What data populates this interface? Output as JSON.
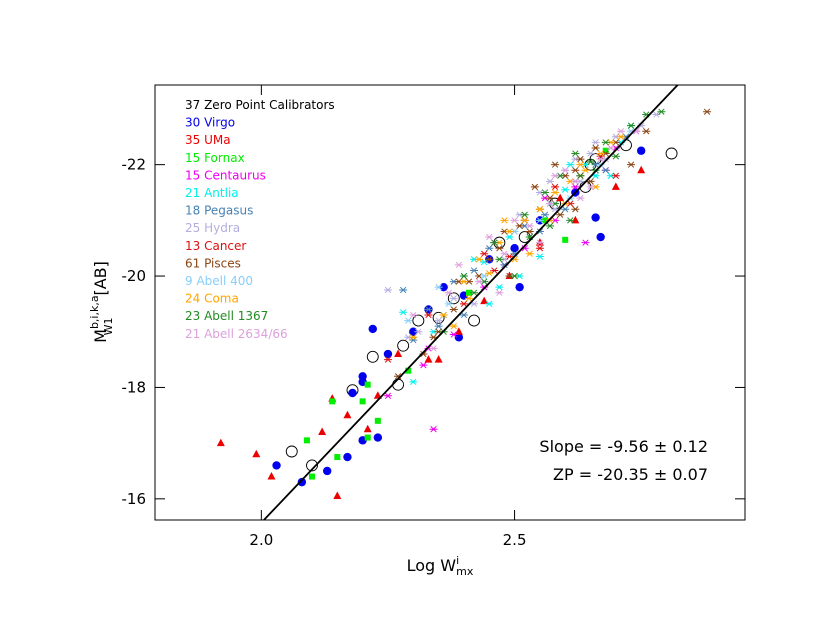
{
  "chart_data": {
    "type": "scatter",
    "x_label": {
      "main": "Log W",
      "sup": "i",
      "sub": "mx"
    },
    "y_label": {
      "main": "M",
      "sup": "b,i,k,a",
      "sub": "W1",
      "unit": "[AB]"
    },
    "xlim": [
      1.79,
      2.955
    ],
    "ylim": [
      -15.62,
      -23.43
    ],
    "xticks": [
      {
        "value": 2,
        "label": "2.0"
      },
      2.5
    ],
    "yticks": [
      -16,
      -18,
      -20,
      -22
    ],
    "annotations": [
      "Slope = -9.56 ± 0.12",
      "ZP = -20.35 ± 0.07"
    ],
    "fit_line": {
      "color": "#000000",
      "x": [
        2.005,
        2.822
      ],
      "values": [
        -15.62,
        -23.43
      ]
    },
    "series": [
      {
        "name": "37 Zero Point Calibrators",
        "color": "#000000",
        "marker": "open-circle",
        "x": [
          2.06,
          2.1,
          2.18,
          2.22,
          2.27,
          2.28,
          2.31,
          2.38,
          2.42,
          2.47,
          2.52,
          2.58,
          2.64,
          2.66,
          2.72,
          2.81,
          2.65,
          2.35
        ],
        "values": [
          -16.85,
          -16.6,
          -17.95,
          -18.55,
          -18.05,
          -18.75,
          -19.2,
          -19.6,
          -19.2,
          -20.6,
          -20.7,
          -21.3,
          -21.6,
          -22.1,
          -22.35,
          -22.2,
          -22.0,
          -19.25
        ]
      },
      {
        "name": "30 Virgo",
        "color": "#0000ee",
        "marker": "circle",
        "x": [
          2.03,
          2.08,
          2.13,
          2.17,
          2.2,
          2.23,
          2.18,
          2.2,
          2.22,
          2.25,
          2.3,
          2.33,
          2.36,
          2.4,
          2.45,
          2.5,
          2.51,
          2.55,
          2.62,
          2.67,
          2.66,
          2.75,
          2.2,
          2.39
        ],
        "values": [
          -16.6,
          -16.3,
          -16.5,
          -16.75,
          -17.05,
          -17.1,
          -17.9,
          -18.2,
          -19.05,
          -18.6,
          -19.0,
          -19.4,
          -19.8,
          -19.65,
          -20.3,
          -20.5,
          -19.8,
          -21.0,
          -21.5,
          -20.7,
          -21.05,
          -22.25,
          -18.1,
          -18.9
        ]
      },
      {
        "name": "35 UMa",
        "color": "#ee0000",
        "marker": "triangle",
        "x": [
          1.92,
          1.99,
          2.02,
          2.15,
          2.12,
          2.14,
          2.17,
          2.21,
          2.23,
          2.27,
          2.33,
          2.39,
          2.44,
          2.49,
          2.55,
          2.62,
          2.7,
          2.75,
          2.35,
          2.59
        ],
        "values": [
          -17.0,
          -16.8,
          -16.4,
          -16.05,
          -17.2,
          -17.8,
          -17.5,
          -17.25,
          -17.85,
          -18.6,
          -18.5,
          -19.0,
          -19.55,
          -20.0,
          -20.6,
          -21.0,
          -21.6,
          -21.9,
          -18.5,
          -21.4
        ]
      },
      {
        "name": "15 Fornax",
        "color": "#00ee00",
        "marker": "square",
        "x": [
          2.09,
          2.1,
          2.14,
          2.15,
          2.2,
          2.21,
          2.23,
          2.29,
          2.41,
          2.56,
          2.6,
          2.68,
          2.21
        ],
        "values": [
          -17.05,
          -16.4,
          -17.75,
          -16.75,
          -17.75,
          -17.1,
          -17.4,
          -18.3,
          -19.7,
          -21.0,
          -20.65,
          -22.25,
          -18.05
        ]
      },
      {
        "name": "15 Centaurus",
        "color": "#ee00ee",
        "marker": "asterisk",
        "x": [
          2.25,
          2.32,
          2.34,
          2.38,
          2.44,
          2.52,
          2.58,
          2.62,
          2.68,
          2.74,
          2.64,
          2.33,
          2.48,
          2.56,
          2.7
        ],
        "values": [
          -17.85,
          -18.4,
          -17.25,
          -18.95,
          -19.8,
          -20.5,
          -21.0,
          -21.6,
          -21.9,
          -22.6,
          -20.6,
          -18.7,
          -20.2,
          -21.4,
          -22.3
        ]
      },
      {
        "name": "21 Antlia",
        "color": "#00eeee",
        "marker": "asterisk",
        "x": [
          2.28,
          2.34,
          2.4,
          2.45,
          2.52,
          2.57,
          2.64,
          2.73,
          2.3,
          2.49,
          2.55,
          2.6,
          2.36,
          2.66,
          2.42,
          2.61,
          2.51,
          2.44,
          2.69,
          2.47,
          2.71
        ],
        "values": [
          -19.35,
          -19.0,
          -20.0,
          -19.5,
          -21.0,
          -21.3,
          -22.0,
          -22.7,
          -18.1,
          -20.7,
          -20.35,
          -21.55,
          -19.3,
          -21.8,
          -20.3,
          -22.0,
          -20.0,
          -20.25,
          -21.8,
          -19.8,
          -22.4
        ]
      },
      {
        "name": "18 Pegasus",
        "color": "#4682b4",
        "marker": "asterisk",
        "x": [
          2.28,
          2.33,
          2.38,
          2.45,
          2.52,
          2.6,
          2.66,
          2.72,
          2.42,
          2.56,
          2.3,
          2.48,
          2.62,
          2.35,
          2.5,
          2.68,
          2.55,
          2.4
        ],
        "values": [
          -19.75,
          -19.4,
          -19.9,
          -20.5,
          -20.9,
          -21.2,
          -22.0,
          -22.5,
          -20.1,
          -21.1,
          -18.85,
          -20.2,
          -21.7,
          -19.1,
          -20.4,
          -21.9,
          -20.8,
          -19.3
        ]
      },
      {
        "name": "25 Hydra",
        "color": "#b4aee0",
        "marker": "asterisk",
        "x": [
          2.25,
          2.29,
          2.35,
          2.4,
          2.46,
          2.51,
          2.55,
          2.6,
          2.65,
          2.7,
          2.78,
          2.44,
          2.53,
          2.58,
          2.63,
          2.38,
          2.48,
          2.57,
          2.68,
          2.75,
          2.42,
          2.5,
          2.62,
          2.31,
          2.66
        ],
        "values": [
          -19.75,
          -18.9,
          -19.2,
          -20.0,
          -20.6,
          -21.1,
          -21.5,
          -21.9,
          -22.2,
          -22.5,
          -22.9,
          -19.9,
          -20.7,
          -21.2,
          -21.7,
          -19.6,
          -20.3,
          -21.7,
          -22.1,
          -22.7,
          -19.5,
          -20.8,
          -22.1,
          -19.0,
          -22.4
        ]
      },
      {
        "name": "13 Cancer",
        "color": "#dd1111",
        "marker": "asterisk",
        "x": [
          2.25,
          2.33,
          2.4,
          2.46,
          2.52,
          2.55,
          2.58,
          2.63,
          2.67,
          2.44,
          2.49,
          2.61,
          2.7
        ],
        "values": [
          -18.5,
          -19.3,
          -19.5,
          -20.1,
          -21.0,
          -20.5,
          -21.6,
          -21.8,
          -22.15,
          -20.4,
          -20.35,
          -21.3,
          -21.8
        ]
      },
      {
        "name": "61 Pisces",
        "color": "#8b4513",
        "marker": "asterisk",
        "x": [
          2.27,
          2.32,
          2.35,
          2.38,
          2.41,
          2.43,
          2.45,
          2.47,
          2.49,
          2.51,
          2.53,
          2.55,
          2.57,
          2.59,
          2.6,
          2.62,
          2.63,
          2.65,
          2.66,
          2.68,
          2.7,
          2.73,
          2.76,
          2.88,
          2.54,
          2.58,
          2.48,
          2.62,
          2.34,
          2.39
        ],
        "values": [
          -18.2,
          -18.6,
          -19.0,
          -19.4,
          -19.9,
          -20.0,
          -20.3,
          -20.5,
          -20.0,
          -20.9,
          -20.8,
          -21.2,
          -21.4,
          -21.1,
          -21.8,
          -21.9,
          -22.1,
          -21.7,
          -22.3,
          -22.2,
          -22.4,
          -22.0,
          -22.6,
          -22.95,
          -21.6,
          -22.0,
          -20.8,
          -21.2,
          -18.9,
          -19.9
        ]
      },
      {
        "name": "9 Abell 400",
        "color": "#87cefa",
        "marker": "asterisk",
        "x": [
          2.29,
          2.37,
          2.44,
          2.5,
          2.55,
          2.61,
          2.67,
          2.73,
          2.35
        ],
        "values": [
          -19.2,
          -19.5,
          -20.0,
          -20.8,
          -21.0,
          -21.4,
          -22.0,
          -22.6,
          -19.8
        ]
      },
      {
        "name": "24 Coma",
        "color": "#ffa500",
        "marker": "asterisk",
        "x": [
          2.3,
          2.36,
          2.4,
          2.43,
          2.47,
          2.49,
          2.52,
          2.55,
          2.58,
          2.61,
          2.64,
          2.67,
          2.71,
          2.38,
          2.45,
          2.5,
          2.53,
          2.57,
          2.6,
          2.63,
          2.66,
          2.48,
          2.41,
          2.69
        ],
        "values": [
          -18.9,
          -19.3,
          -19.9,
          -20.3,
          -20.6,
          -20.8,
          -21.0,
          -21.2,
          -21.5,
          -21.7,
          -21.9,
          -22.2,
          -22.5,
          -19.1,
          -20.05,
          -20.3,
          -20.4,
          -21.0,
          -21.3,
          -22.0,
          -21.6,
          -21.0,
          -19.6,
          -22.4
        ]
      },
      {
        "name": "23 Abell 1367",
        "color": "#228b22",
        "marker": "asterisk",
        "x": [
          2.36,
          2.42,
          2.47,
          2.53,
          2.58,
          2.63,
          2.68,
          2.73,
          2.79,
          2.46,
          2.56,
          2.61,
          2.5,
          2.65,
          2.7,
          2.44,
          2.52,
          2.59,
          2.76,
          2.4,
          2.57,
          2.66,
          2.62
        ],
        "values": [
          -19.0,
          -19.7,
          -20.3,
          -20.7,
          -21.3,
          -21.8,
          -22.4,
          -22.7,
          -22.95,
          -20.6,
          -21.5,
          -21.0,
          -20.0,
          -22.05,
          -22.15,
          -19.9,
          -21.1,
          -21.8,
          -22.9,
          -20.0,
          -20.9,
          -21.9,
          -22.2
        ]
      },
      {
        "name": "21 Abell 2634/66",
        "color": "#dda0dd",
        "marker": "asterisk",
        "x": [
          2.3,
          2.37,
          2.43,
          2.48,
          2.53,
          2.57,
          2.62,
          2.67,
          2.71,
          2.45,
          2.55,
          2.6,
          2.39,
          2.65,
          2.5,
          2.58,
          2.69,
          2.34,
          2.63,
          2.74,
          2.47
        ],
        "values": [
          -19.3,
          -19.7,
          -19.9,
          -20.4,
          -20.9,
          -21.3,
          -21.7,
          -22.1,
          -22.6,
          -20.7,
          -20.6,
          -21.9,
          -20.2,
          -21.6,
          -21.0,
          -21.8,
          -22.3,
          -18.7,
          -21.4,
          -22.6,
          -19.7
        ]
      }
    ]
  }
}
